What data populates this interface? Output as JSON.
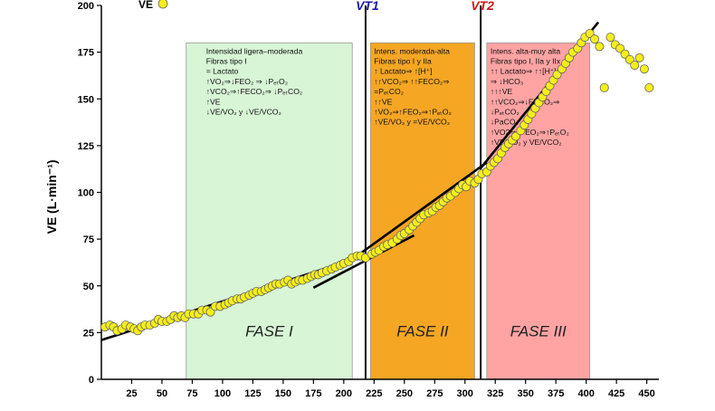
{
  "chart_data": {
    "type": "scatter",
    "ylabel": "VE (L·min⁻¹)",
    "xlim": [
      0,
      460
    ],
    "ylim": [
      0,
      200
    ],
    "x_ticks": [
      25,
      50,
      75,
      100,
      125,
      150,
      175,
      200,
      225,
      250,
      275,
      300,
      325,
      350,
      375,
      400,
      425,
      450
    ],
    "y_ticks": [
      0,
      25,
      50,
      75,
      100,
      125,
      150,
      175,
      200
    ],
    "legend": {
      "label": "VE",
      "position": "top-left",
      "marker_color": "#f5ee1a"
    },
    "thresholds": [
      {
        "label": "VT1",
        "x": 218,
        "color": "#1a1aaa"
      },
      {
        "label": "VT2",
        "x": 313,
        "color": "#cc1a1a"
      }
    ],
    "phases": [
      {
        "label": "FASE I",
        "x_start": 70,
        "x_end": 207,
        "y_top": 180,
        "color": "#d8f5d6",
        "notes": [
          "Intensidad ligera–moderada",
          "Fibras tipo I",
          "= Lactato",
          "↑VO₂⇒↓FEO₂ ⇒ ↓PₑₜO₂",
          "↑VCO₂⇒↑FECO₂⇒ ↓PₑₜCO₂",
          "↑VE",
          "↓VE/VO₂ y ↓VE/VCO₂"
        ]
      },
      {
        "label": "FASE II",
        "x_start": 222,
        "x_end": 308,
        "y_top": 180,
        "color": "#f5a623",
        "notes": [
          "Intens. moderada-alta",
          "Fibras tipo I y IIa",
          "↑ Lactato⇒ ↑[H⁺]",
          "↑↑VCO₂⇒ ↑↑FECO₂⇒",
          "=PₑₜCO₂",
          "↑↑VE",
          "↑VO₂⇒↑FEO₂⇒↑PₑₜO₂",
          "↑VE/VO₂ y =VE/VCO₂"
        ]
      },
      {
        "label": "FASE III",
        "x_start": 318,
        "x_end": 403,
        "y_top": 180,
        "color": "#ffa3a3",
        "notes": [
          "Intens. alta-muy alta",
          "Fibras tipo I, IIa y IIx",
          "↑↑ Lactato⇒ ↑↑[H⁺]",
          "⇒ ↓HCO₃",
          "↑↑↑VE",
          "↑↑VCO₂⇒↓FECO₂⇒",
          "↓PₑₜCO₂",
          "↓PaCO₂",
          "↑VO2⇒↑FEO₂⇒↑PₑₜO₂",
          "↑VE/VO₂ y VE/VCO₂"
        ]
      }
    ],
    "trend_lines": [
      {
        "x": [
          0,
          222
        ],
        "y": [
          21,
          67
        ]
      },
      {
        "x": [
          175,
          258
        ],
        "y": [
          49,
          77
        ]
      },
      {
        "x": [
          198,
          318
        ],
        "y": [
          60,
          116
        ]
      },
      {
        "x": [
          313,
          410
        ],
        "y": [
          113,
          191
        ]
      }
    ],
    "points": [
      [
        3,
        28
      ],
      [
        7,
        29
      ],
      [
        10,
        28
      ],
      [
        13,
        26
      ],
      [
        17,
        27
      ],
      [
        20,
        29
      ],
      [
        24,
        28
      ],
      [
        27,
        27
      ],
      [
        30,
        26
      ],
      [
        33,
        28
      ],
      [
        36,
        29
      ],
      [
        40,
        29
      ],
      [
        44,
        30
      ],
      [
        47,
        32
      ],
      [
        50,
        31
      ],
      [
        54,
        31
      ],
      [
        57,
        32
      ],
      [
        60,
        34
      ],
      [
        63,
        33
      ],
      [
        66,
        34
      ],
      [
        69,
        33
      ],
      [
        72,
        35
      ],
      [
        76,
        35
      ],
      [
        80,
        35
      ],
      [
        83,
        37
      ],
      [
        87,
        37
      ],
      [
        90,
        36
      ],
      [
        94,
        39
      ],
      [
        98,
        39
      ],
      [
        102,
        40
      ],
      [
        105,
        41
      ],
      [
        108,
        42
      ],
      [
        112,
        43
      ],
      [
        115,
        43
      ],
      [
        118,
        44
      ],
      [
        122,
        45
      ],
      [
        125,
        46
      ],
      [
        128,
        47
      ],
      [
        132,
        47
      ],
      [
        135,
        48
      ],
      [
        138,
        49
      ],
      [
        141,
        50
      ],
      [
        144,
        51
      ],
      [
        147,
        51
      ],
      [
        151,
        52
      ],
      [
        154,
        53
      ],
      [
        157,
        51
      ],
      [
        160,
        52
      ],
      [
        163,
        53
      ],
      [
        166,
        53
      ],
      [
        170,
        54
      ],
      [
        173,
        55
      ],
      [
        176,
        56
      ],
      [
        179,
        56
      ],
      [
        182,
        57
      ],
      [
        186,
        58
      ],
      [
        190,
        59
      ],
      [
        193,
        60
      ],
      [
        197,
        61
      ],
      [
        200,
        62
      ],
      [
        204,
        63
      ],
      [
        207,
        65
      ],
      [
        211,
        66
      ],
      [
        214,
        66
      ],
      [
        218,
        65
      ],
      [
        223,
        67
      ],
      [
        226,
        68
      ],
      [
        229,
        69
      ],
      [
        233,
        71
      ],
      [
        236,
        72
      ],
      [
        240,
        73
      ],
      [
        244,
        75
      ],
      [
        247,
        77
      ],
      [
        250,
        78
      ],
      [
        254,
        80
      ],
      [
        257,
        82
      ],
      [
        260,
        84
      ],
      [
        263,
        86
      ],
      [
        266,
        88
      ],
      [
        270,
        89
      ],
      [
        273,
        90
      ],
      [
        276,
        92
      ],
      [
        279,
        93
      ],
      [
        282,
        95
      ],
      [
        285,
        97
      ],
      [
        288,
        98
      ],
      [
        292,
        100
      ],
      [
        295,
        102
      ],
      [
        298,
        104
      ],
      [
        301,
        103
      ],
      [
        304,
        106
      ],
      [
        308,
        105
      ],
      [
        311,
        107
      ],
      [
        314,
        110
      ],
      [
        318,
        111
      ],
      [
        321,
        114
      ],
      [
        324,
        116
      ],
      [
        327,
        118
      ],
      [
        330,
        121
      ],
      [
        333,
        124
      ],
      [
        336,
        126
      ],
      [
        339,
        128
      ],
      [
        342,
        130
      ],
      [
        346,
        133
      ],
      [
        349,
        136
      ],
      [
        352,
        139
      ],
      [
        355,
        142
      ],
      [
        358,
        145
      ],
      [
        361,
        148
      ],
      [
        364,
        151
      ],
      [
        367,
        154
      ],
      [
        370,
        157
      ],
      [
        373,
        160
      ],
      [
        376,
        163
      ],
      [
        380,
        166
      ],
      [
        383,
        169
      ],
      [
        386,
        172
      ],
      [
        389,
        175
      ],
      [
        393,
        177
      ],
      [
        396,
        180
      ],
      [
        399,
        183
      ],
      [
        403,
        185
      ],
      [
        407,
        182
      ],
      [
        411,
        178
      ],
      [
        415,
        156
      ],
      [
        420,
        183
      ],
      [
        424,
        179
      ],
      [
        428,
        177
      ],
      [
        432,
        174
      ],
      [
        436,
        171
      ],
      [
        440,
        168
      ],
      [
        444,
        172
      ],
      [
        448,
        166
      ],
      [
        452,
        156
      ]
    ]
  }
}
